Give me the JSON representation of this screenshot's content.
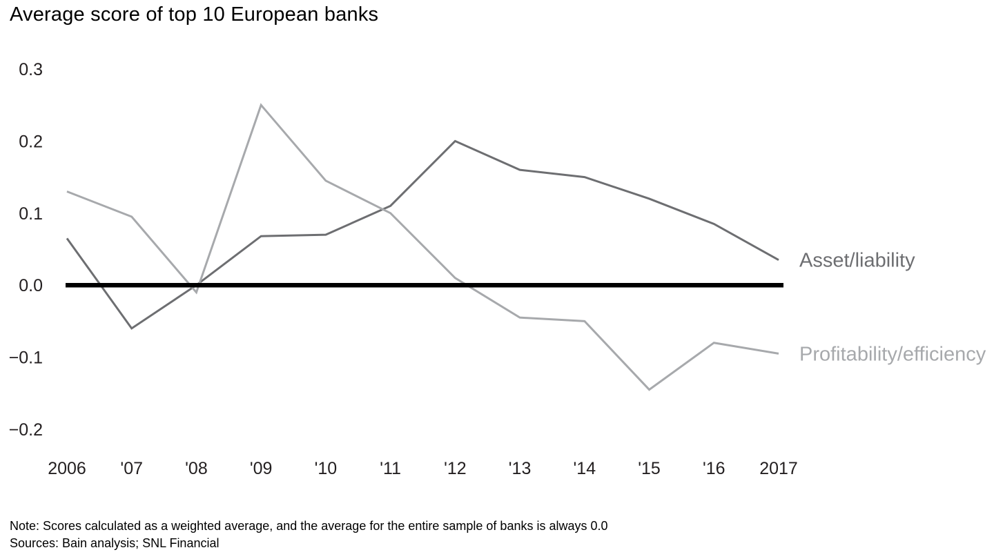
{
  "page": {
    "title": "Average score of top 10 European banks",
    "note": "Note: Scores calculated as a weighted average, and the average for the entire sample of banks is always 0.0",
    "sources": "Sources: Bain analysis; SNL Financial"
  },
  "chart_data": {
    "type": "line",
    "title": "Average score of top 10 European banks",
    "categories": [
      "2006",
      "'07",
      "'08",
      "'09",
      "'10",
      "'11",
      "'12",
      "'13",
      "'14",
      "'15",
      "'16",
      "2017"
    ],
    "series": [
      {
        "name": "Asset/liability",
        "color": "#6d6e71",
        "values": [
          0.065,
          -0.06,
          0.0,
          0.068,
          0.07,
          0.11,
          0.2,
          0.16,
          0.15,
          0.12,
          0.085,
          0.035
        ]
      },
      {
        "name": "Profitability/efficiency",
        "color": "#a7a9ac",
        "values": [
          0.13,
          0.095,
          -0.01,
          0.25,
          0.145,
          0.1,
          0.01,
          -0.045,
          -0.05,
          -0.145,
          -0.08,
          -0.095
        ]
      }
    ],
    "xlabel": "",
    "ylabel": "",
    "ylim": [
      -0.2,
      0.3
    ],
    "yticks": [
      {
        "value": 0.3,
        "label": "0.3"
      },
      {
        "value": 0.2,
        "label": "0.2"
      },
      {
        "value": 0.1,
        "label": "0.1"
      },
      {
        "value": 0.0,
        "label": "0.0"
      },
      {
        "value": -0.1,
        "label": "−0.1"
      },
      {
        "value": -0.2,
        "label": "−0.2"
      }
    ],
    "zero_line": {
      "value": 0.0,
      "color": "#000000",
      "width": 6.5
    },
    "grid": false,
    "legend_position": "right-end-of-lines"
  }
}
